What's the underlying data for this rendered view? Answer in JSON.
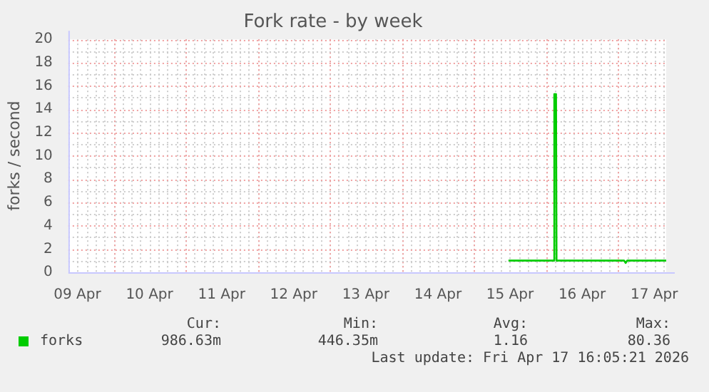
{
  "chart_data": {
    "type": "line",
    "title": "Fork rate - by week",
    "ylabel": "forks / second",
    "x": [
      "2026-04-15T11:30",
      "2026-04-16T02:40",
      "2026-04-16T02:45",
      "2026-04-16T03:20",
      "2026-04-16T03:30",
      "2026-04-17T02:00",
      "2026-04-17T02:30",
      "2026-04-17T03:00",
      "2026-04-17T16:00"
    ],
    "series": [
      {
        "name": "forks",
        "color": "#00cc00",
        "values": [
          1.0,
          1.0,
          15.3,
          15.3,
          1.0,
          1.0,
          0.8,
          1.0,
          1.0
        ]
      }
    ],
    "xlim": [
      "2026-04-09T09:00",
      "2026-04-17T16:00"
    ],
    "xticks": [
      {
        "value": "2026-04-09T12:00",
        "label": "09 Apr"
      },
      {
        "value": "2026-04-10T12:00",
        "label": "10 Apr"
      },
      {
        "value": "2026-04-11T12:00",
        "label": "11 Apr"
      },
      {
        "value": "2026-04-12T12:00",
        "label": "12 Apr"
      },
      {
        "value": "2026-04-13T12:00",
        "label": "13 Apr"
      },
      {
        "value": "2026-04-14T12:00",
        "label": "14 Apr"
      },
      {
        "value": "2026-04-15T12:00",
        "label": "15 Apr"
      },
      {
        "value": "2026-04-16T12:00",
        "label": "16 Apr"
      },
      {
        "value": "2026-04-17T12:00",
        "label": "17 Apr"
      }
    ],
    "ylim": [
      0,
      20
    ],
    "yticks": [
      0,
      2,
      4,
      6,
      8,
      10,
      12,
      14,
      16,
      18,
      20
    ],
    "grid": true,
    "legend": "bottom left",
    "marker": "none",
    "line_style": "solid",
    "annotations": [
      "Cur:",
      "Min:",
      "Avg:",
      "Max:",
      "986.63m",
      "446.35m",
      "1.16",
      "80.36",
      "Last update: Fri Apr 17 16:05:21 2026"
    ]
  }
}
